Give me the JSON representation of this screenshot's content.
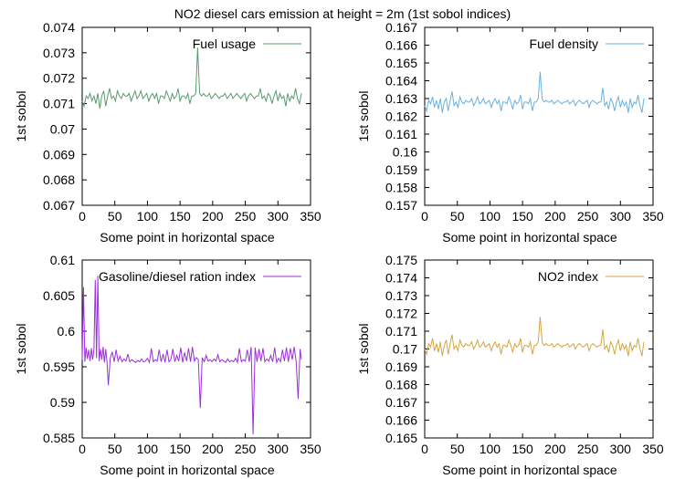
{
  "title": "NO2 diesel cars emission at height = 2m (1st sobol indices)",
  "chart_data": [
    {
      "type": "line",
      "legend": "Fuel usage",
      "color": "#5a9a6e",
      "xlabel": "Some point in horizontal space",
      "ylabel": "1st sobol",
      "xlim": [
        0,
        350
      ],
      "ylim": [
        0.067,
        0.074
      ],
      "xticks": [
        0,
        50,
        100,
        150,
        200,
        250,
        300,
        350
      ],
      "yticks": [
        0.067,
        0.068,
        0.069,
        0.07,
        0.071,
        0.072,
        0.073,
        0.074
      ],
      "yticklabels": [
        "0.067",
        "0.068",
        "0.069",
        "0.07",
        "0.071",
        "0.072",
        "0.073",
        "0.074"
      ],
      "x": [
        0,
        3,
        6,
        9,
        12,
        15,
        18,
        21,
        24,
        27,
        30,
        33,
        36,
        39,
        42,
        45,
        48,
        51,
        54,
        57,
        60,
        63,
        66,
        69,
        72,
        75,
        78,
        81,
        84,
        87,
        90,
        93,
        96,
        99,
        102,
        105,
        108,
        111,
        114,
        117,
        120,
        123,
        126,
        129,
        132,
        135,
        138,
        141,
        144,
        147,
        150,
        153,
        156,
        159,
        162,
        165,
        168,
        171,
        174,
        177,
        180,
        183,
        186,
        189,
        192,
        195,
        198,
        201,
        204,
        207,
        210,
        213,
        216,
        219,
        222,
        225,
        228,
        231,
        234,
        237,
        240,
        243,
        246,
        249,
        252,
        255,
        258,
        261,
        264,
        267,
        270,
        273,
        276,
        279,
        282,
        285,
        288,
        291,
        294,
        297,
        300,
        303,
        306,
        309,
        312,
        315,
        318,
        321,
        324,
        327,
        330,
        333,
        336
      ],
      "y": [
        0.0711,
        0.0709,
        0.0713,
        0.0712,
        0.0714,
        0.0711,
        0.0713,
        0.071,
        0.0714,
        0.0708,
        0.0713,
        0.0715,
        0.0709,
        0.0713,
        0.0716,
        0.0712,
        0.0713,
        0.0711,
        0.0715,
        0.0713,
        0.0712,
        0.0714,
        0.0713,
        0.0713,
        0.0714,
        0.0711,
        0.0713,
        0.0715,
        0.0712,
        0.0713,
        0.0715,
        0.0712,
        0.0713,
        0.0714,
        0.0711,
        0.0713,
        0.0714,
        0.0712,
        0.0714,
        0.071,
        0.0713,
        0.0713,
        0.0712,
        0.0715,
        0.0713,
        0.0711,
        0.0714,
        0.0712,
        0.0713,
        0.0716,
        0.0711,
        0.0713,
        0.0713,
        0.0712,
        0.0714,
        0.071,
        0.0713,
        0.0713,
        0.0714,
        0.0732,
        0.0714,
        0.0713,
        0.0714,
        0.0713,
        0.0713,
        0.0714,
        0.0712,
        0.0713,
        0.0714,
        0.0713,
        0.0712,
        0.0713,
        0.0713,
        0.0714,
        0.0712,
        0.0713,
        0.0714,
        0.0712,
        0.0713,
        0.0714,
        0.0713,
        0.0712,
        0.0713,
        0.0714,
        0.0711,
        0.0713,
        0.0714,
        0.0713,
        0.0712,
        0.0713,
        0.0713,
        0.0716,
        0.0712,
        0.0713,
        0.0711,
        0.0714,
        0.0713,
        0.071,
        0.0713,
        0.0715,
        0.0711,
        0.0714,
        0.0712,
        0.0713,
        0.0709,
        0.0714,
        0.0711,
        0.0713,
        0.0712,
        0.0716,
        0.0712,
        0.071,
        0.0714
      ]
    },
    {
      "type": "line",
      "legend": "Fuel density",
      "color": "#6ab0de",
      "xlabel": "Some point in horizontal space",
      "ylabel": "1st sobol",
      "xlim": [
        0,
        350
      ],
      "ylim": [
        0.157,
        0.167
      ],
      "xticks": [
        0,
        50,
        100,
        150,
        200,
        250,
        300,
        350
      ],
      "yticks": [
        0.157,
        0.158,
        0.159,
        0.16,
        0.161,
        0.162,
        0.163,
        0.164,
        0.165,
        0.166,
        0.167
      ],
      "yticklabels": [
        "0.157",
        "0.158",
        "0.159",
        "0.16",
        "0.161",
        "0.162",
        "0.163",
        "0.164",
        "0.165",
        "0.166",
        "0.167"
      ],
      "x": [
        0,
        3,
        6,
        9,
        12,
        15,
        18,
        21,
        24,
        27,
        30,
        33,
        36,
        39,
        42,
        45,
        48,
        51,
        54,
        57,
        60,
        63,
        66,
        69,
        72,
        75,
        78,
        81,
        84,
        87,
        90,
        93,
        96,
        99,
        102,
        105,
        108,
        111,
        114,
        117,
        120,
        123,
        126,
        129,
        132,
        135,
        138,
        141,
        144,
        147,
        150,
        153,
        156,
        159,
        162,
        165,
        168,
        171,
        174,
        177,
        180,
        183,
        186,
        189,
        192,
        195,
        198,
        201,
        204,
        207,
        210,
        213,
        216,
        219,
        222,
        225,
        228,
        231,
        234,
        237,
        240,
        243,
        246,
        249,
        252,
        255,
        258,
        261,
        264,
        267,
        270,
        273,
        276,
        279,
        282,
        285,
        288,
        291,
        294,
        297,
        300,
        303,
        306,
        309,
        312,
        315,
        318,
        321,
        324,
        327,
        330,
        333,
        336
      ],
      "y": [
        0.1626,
        0.1623,
        0.1629,
        0.1627,
        0.1631,
        0.1625,
        0.1629,
        0.1624,
        0.163,
        0.1622,
        0.1628,
        0.163,
        0.1623,
        0.1629,
        0.1634,
        0.1626,
        0.1628,
        0.1625,
        0.1631,
        0.1628,
        0.1627,
        0.1629,
        0.1628,
        0.1628,
        0.163,
        0.1626,
        0.1628,
        0.1631,
        0.1627,
        0.1628,
        0.163,
        0.1627,
        0.1628,
        0.1629,
        0.1625,
        0.1628,
        0.163,
        0.1627,
        0.1629,
        0.1623,
        0.1628,
        0.1628,
        0.1627,
        0.1631,
        0.1628,
        0.1624,
        0.1629,
        0.1627,
        0.1628,
        0.1632,
        0.1624,
        0.1628,
        0.1628,
        0.1627,
        0.163,
        0.1623,
        0.1628,
        0.1628,
        0.163,
        0.1645,
        0.163,
        0.1628,
        0.1629,
        0.1628,
        0.1628,
        0.1629,
        0.1627,
        0.1628,
        0.1629,
        0.1628,
        0.1627,
        0.1628,
        0.1628,
        0.1629,
        0.1627,
        0.1628,
        0.1629,
        0.1626,
        0.1628,
        0.1629,
        0.1628,
        0.1627,
        0.1628,
        0.1629,
        0.1625,
        0.1628,
        0.1629,
        0.1628,
        0.1627,
        0.1628,
        0.1628,
        0.1636,
        0.1626,
        0.1628,
        0.1624,
        0.163,
        0.1628,
        0.1623,
        0.1628,
        0.1631,
        0.1625,
        0.1629,
        0.1626,
        0.1628,
        0.1622,
        0.163,
        0.1625,
        0.1628,
        0.1627,
        0.1632,
        0.1626,
        0.1622,
        0.163
      ]
    },
    {
      "type": "line",
      "legend": "Gasoline/diesel ration index",
      "color": "#9b30d9",
      "xlabel": "Some point in horizontal space",
      "ylabel": "1st sobol",
      "xlim": [
        0,
        350
      ],
      "ylim": [
        0.585,
        0.61
      ],
      "xticks": [
        0,
        50,
        100,
        150,
        200,
        250,
        300,
        350
      ],
      "yticks": [
        0.585,
        0.59,
        0.595,
        0.6,
        0.605,
        0.61
      ],
      "yticklabels": [
        "0.585",
        "0.59",
        "0.595",
        "0.6",
        "0.605",
        "0.61"
      ],
      "x": [
        0,
        2,
        4,
        6,
        8,
        10,
        12,
        14,
        16,
        18,
        20,
        22,
        24,
        26,
        28,
        30,
        32,
        34,
        36,
        38,
        40,
        43,
        46,
        49,
        52,
        55,
        58,
        61,
        64,
        67,
        70,
        73,
        76,
        79,
        82,
        85,
        88,
        91,
        94,
        97,
        100,
        103,
        106,
        109,
        112,
        115,
        118,
        121,
        124,
        127,
        130,
        133,
        136,
        139,
        142,
        145,
        148,
        151,
        154,
        157,
        160,
        163,
        166,
        169,
        172,
        175,
        178,
        181,
        184,
        187,
        190,
        193,
        196,
        199,
        202,
        205,
        208,
        211,
        214,
        217,
        220,
        223,
        226,
        229,
        232,
        235,
        238,
        241,
        244,
        247,
        250,
        253,
        256,
        259,
        262,
        265,
        268,
        271,
        274,
        277,
        280,
        283,
        286,
        289,
        292,
        295,
        298,
        301,
        304,
        307,
        310,
        313,
        316,
        319,
        322,
        325,
        328,
        331,
        334,
        336
      ],
      "y": [
        0.596,
        0.6062,
        0.5957,
        0.5977,
        0.5961,
        0.5974,
        0.5958,
        0.5976,
        0.596,
        0.5975,
        0.6072,
        0.5962,
        0.6078,
        0.5958,
        0.5975,
        0.596,
        0.5978,
        0.5956,
        0.5975,
        0.5958,
        0.5924,
        0.5962,
        0.5971,
        0.5957,
        0.5974,
        0.5958,
        0.5965,
        0.5957,
        0.5961,
        0.5958,
        0.5968,
        0.5957,
        0.596,
        0.5958,
        0.5956,
        0.5959,
        0.5957,
        0.5961,
        0.5957,
        0.5958,
        0.5962,
        0.5956,
        0.5976,
        0.5957,
        0.596,
        0.5958,
        0.5974,
        0.5957,
        0.5968,
        0.5956,
        0.5974,
        0.5957,
        0.596,
        0.5975,
        0.5957,
        0.5966,
        0.5958,
        0.5977,
        0.5956,
        0.597,
        0.5958,
        0.5976,
        0.5957,
        0.5978,
        0.5958,
        0.5963,
        0.596,
        0.5892,
        0.5963,
        0.5957,
        0.5966,
        0.5958,
        0.596,
        0.5957,
        0.5961,
        0.5958,
        0.5967,
        0.5957,
        0.596,
        0.5958,
        0.5956,
        0.5961,
        0.5957,
        0.5959,
        0.5957,
        0.5962,
        0.5956,
        0.5976,
        0.5957,
        0.596,
        0.5958,
        0.5974,
        0.5957,
        0.5978,
        0.5855,
        0.5977,
        0.5957,
        0.5975,
        0.5958,
        0.5976,
        0.5957,
        0.5961,
        0.5958,
        0.5966,
        0.5957,
        0.5977,
        0.5956,
        0.5962,
        0.5957,
        0.5974,
        0.5958,
        0.5977,
        0.5957,
        0.5976,
        0.596,
        0.5978,
        0.5957,
        0.5905,
        0.5975,
        0.596
      ]
    },
    {
      "type": "line",
      "legend": "NO2 index",
      "color": "#d4a640",
      "xlabel": "Some point in horizontal space",
      "ylabel": "1st sobol",
      "xlim": [
        0,
        350
      ],
      "ylim": [
        0.165,
        0.175
      ],
      "xticks": [
        0,
        50,
        100,
        150,
        200,
        250,
        300,
        350
      ],
      "yticks": [
        0.165,
        0.166,
        0.167,
        0.168,
        0.169,
        0.17,
        0.171,
        0.172,
        0.173,
        0.174,
        0.175
      ],
      "yticklabels": [
        "0.165",
        "0.166",
        "0.167",
        "0.168",
        "0.169",
        "0.17",
        "0.171",
        "0.172",
        "0.173",
        "0.174",
        "0.175"
      ],
      "x": [
        0,
        3,
        6,
        9,
        12,
        15,
        18,
        21,
        24,
        27,
        30,
        33,
        36,
        39,
        42,
        45,
        48,
        51,
        54,
        57,
        60,
        63,
        66,
        69,
        72,
        75,
        78,
        81,
        84,
        87,
        90,
        93,
        96,
        99,
        102,
        105,
        108,
        111,
        114,
        117,
        120,
        123,
        126,
        129,
        132,
        135,
        138,
        141,
        144,
        147,
        150,
        153,
        156,
        159,
        162,
        165,
        168,
        171,
        174,
        177,
        180,
        183,
        186,
        189,
        192,
        195,
        198,
        201,
        204,
        207,
        210,
        213,
        216,
        219,
        222,
        225,
        228,
        231,
        234,
        237,
        240,
        243,
        246,
        249,
        252,
        255,
        258,
        261,
        264,
        267,
        270,
        273,
        276,
        279,
        282,
        285,
        288,
        291,
        294,
        297,
        300,
        303,
        306,
        309,
        312,
        315,
        318,
        321,
        324,
        327,
        330,
        333,
        336
      ],
      "y": [
        0.17,
        0.1697,
        0.1703,
        0.1701,
        0.1706,
        0.1699,
        0.1703,
        0.1698,
        0.1704,
        0.1696,
        0.1702,
        0.1705,
        0.1697,
        0.1703,
        0.1708,
        0.17,
        0.1702,
        0.1699,
        0.1705,
        0.1702,
        0.1701,
        0.1703,
        0.1702,
        0.1702,
        0.1704,
        0.17,
        0.1702,
        0.1705,
        0.1701,
        0.1702,
        0.1704,
        0.1701,
        0.1702,
        0.1703,
        0.1699,
        0.1702,
        0.1704,
        0.1701,
        0.1703,
        0.1697,
        0.1702,
        0.1702,
        0.1701,
        0.1705,
        0.1702,
        0.1698,
        0.1703,
        0.1701,
        0.1702,
        0.1706,
        0.1698,
        0.1702,
        0.1702,
        0.1701,
        0.1704,
        0.1697,
        0.1702,
        0.1702,
        0.1704,
        0.1718,
        0.1704,
        0.1702,
        0.1703,
        0.1702,
        0.1702,
        0.1703,
        0.1701,
        0.1702,
        0.1703,
        0.1702,
        0.1701,
        0.1702,
        0.1702,
        0.1703,
        0.1701,
        0.1702,
        0.1703,
        0.17,
        0.1702,
        0.1703,
        0.1702,
        0.1701,
        0.1702,
        0.1703,
        0.1699,
        0.1702,
        0.1703,
        0.1702,
        0.1701,
        0.1702,
        0.1702,
        0.1711,
        0.17,
        0.1702,
        0.1698,
        0.1704,
        0.1702,
        0.1697,
        0.1702,
        0.1705,
        0.1699,
        0.1703,
        0.17,
        0.1702,
        0.1696,
        0.1704,
        0.1699,
        0.1702,
        0.1701,
        0.1706,
        0.17,
        0.1696,
        0.1704
      ]
    }
  ]
}
